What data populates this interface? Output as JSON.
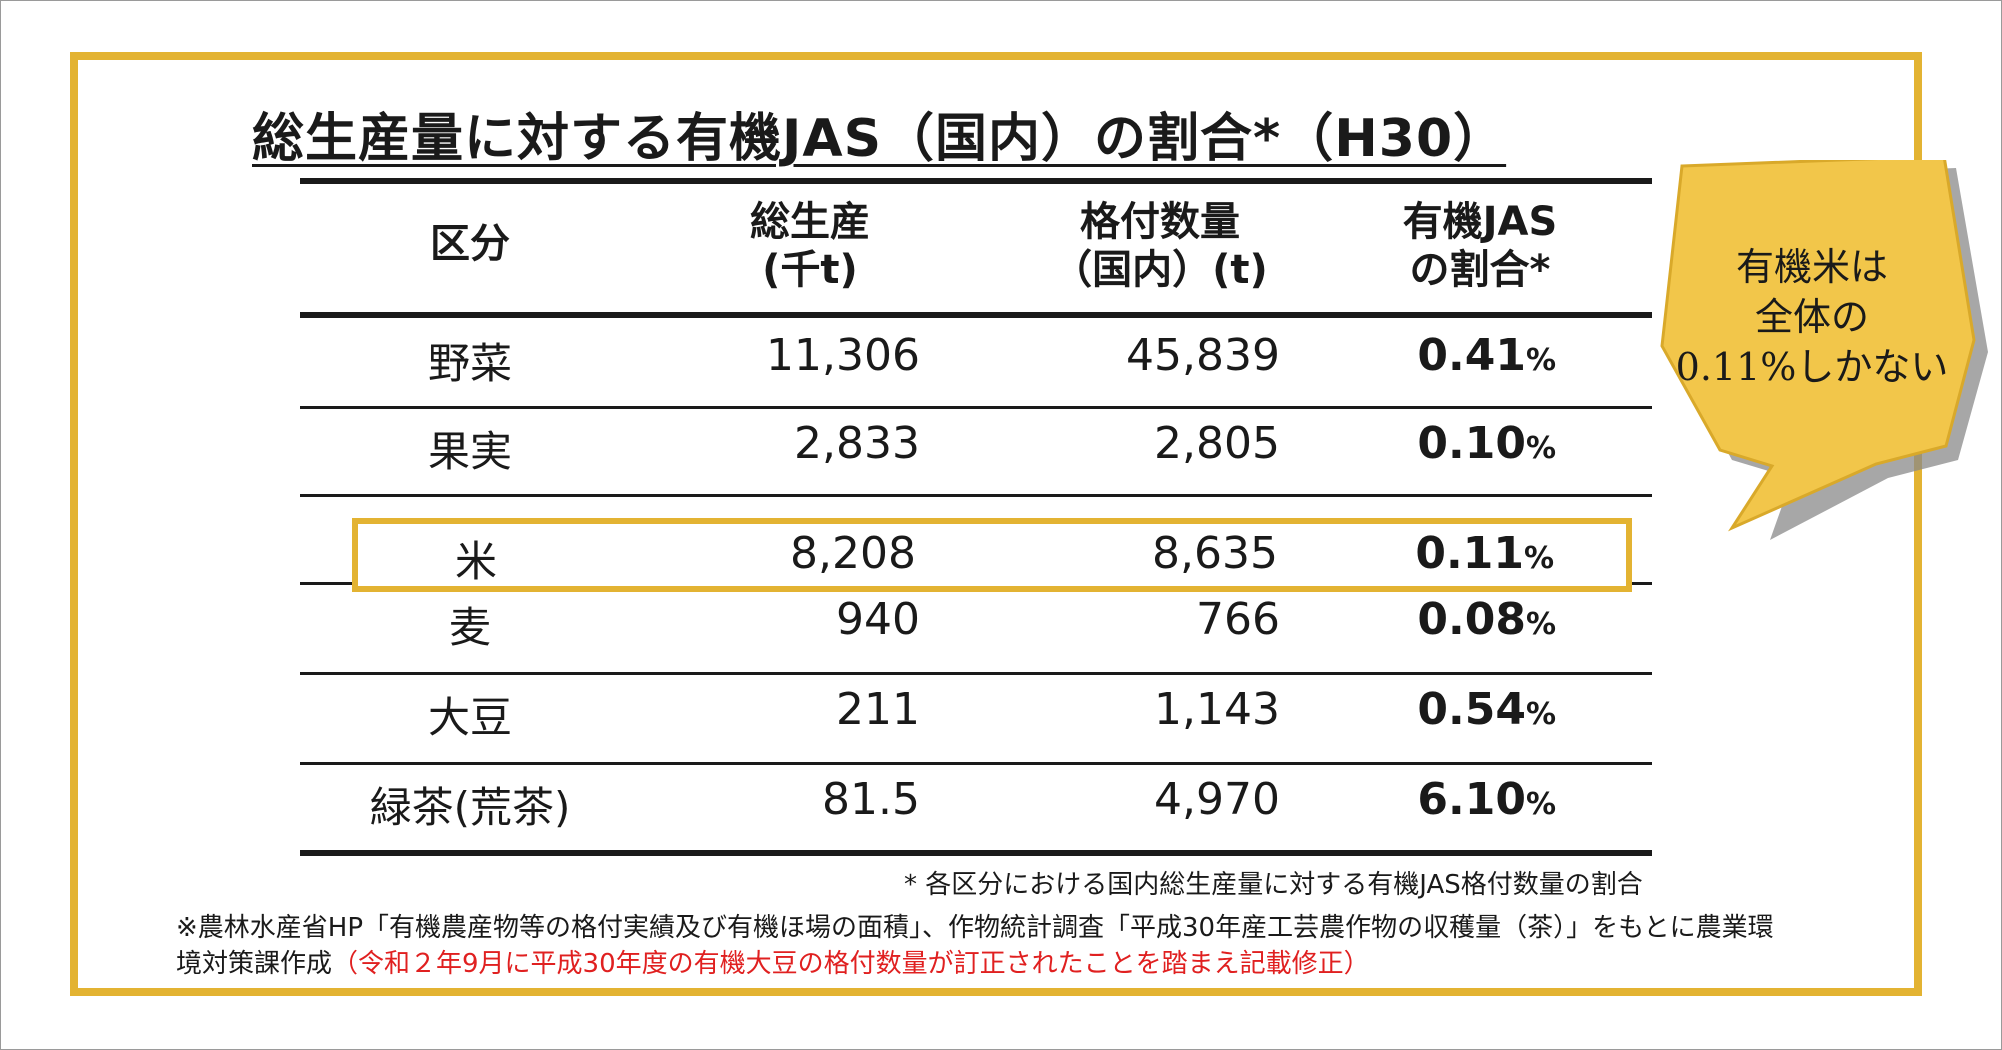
{
  "title": "総生産量に対する有機JAS（国内）の割合*（H30）",
  "table": {
    "headers": [
      {
        "line1": "区分",
        "line2": ""
      },
      {
        "line1": "総生産",
        "line2": "(千t)"
      },
      {
        "line1": "格付数量",
        "line2": "（国内）(t)"
      },
      {
        "line1": "有機JAS",
        "line2": "の割合*"
      }
    ],
    "percent_unit": "%",
    "rows": [
      {
        "category": "野菜",
        "total": "11,306",
        "graded": "45,839",
        "ratio": "0.41"
      },
      {
        "category": "果実",
        "total": "2,833",
        "graded": "2,805",
        "ratio": "0.10"
      },
      {
        "category": "米",
        "total": "8,208",
        "graded": "8,635",
        "ratio": "0.11"
      },
      {
        "category": "麦",
        "total": "940",
        "graded": "766",
        "ratio": "0.08"
      },
      {
        "category": "大豆",
        "total": "211",
        "graded": "1,143",
        "ratio": "0.54"
      },
      {
        "category": "緑茶(荒茶)",
        "total": "81.5",
        "graded": "4,970",
        "ratio": "6.10"
      }
    ],
    "highlighted_row": "米"
  },
  "callout": {
    "line1": "有機米は",
    "line2": "全体の",
    "line3": "0.11%しかない",
    "fill_color": "#f2c64a",
    "shadow_color": "#8a8a8a"
  },
  "footnote": "* 各区分における国内総生産量に対する有機JAS格付数量の割合",
  "source_note": {
    "black_text": "※農林水産省HP「有機農産物等の格付実績及び有機ほ場の面積」、作物統計調査「平成30年産工芸農作物の収穫量（茶）」をもとに農業環境対策課作成",
    "red_text": "（令和２年9月に平成30年度の有機大豆の格付数量が訂正されたことを踏まえ記載修正）",
    "red_color": "#e02020"
  },
  "colors": {
    "frame": "#e3b332",
    "text": "#1a1a1a"
  }
}
